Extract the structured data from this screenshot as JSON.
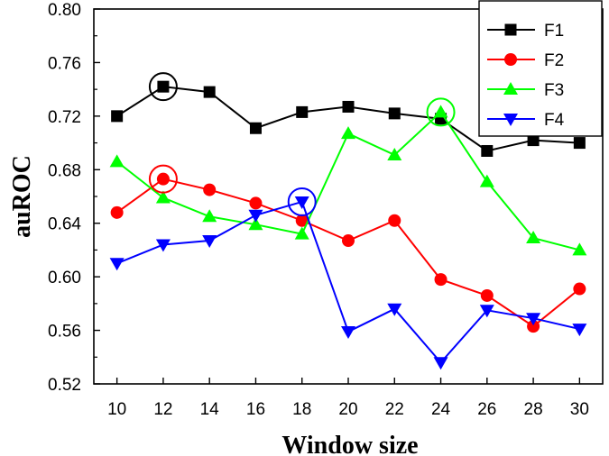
{
  "chart_data": {
    "type": "line",
    "title": "",
    "xlabel": "Window size",
    "ylabel": "auROC",
    "x": [
      10,
      12,
      14,
      16,
      18,
      20,
      22,
      24,
      26,
      28,
      30
    ],
    "xticks": [
      "10",
      "12",
      "14",
      "16",
      "18",
      "20",
      "22",
      "24",
      "26",
      "28",
      "30"
    ],
    "yticks": [
      "0.52",
      "0.56",
      "0.60",
      "0.64",
      "0.68",
      "0.72",
      "0.76",
      "0.80"
    ],
    "ylim": [
      0.52,
      0.8
    ],
    "legend_position": "top-right",
    "series": [
      {
        "name": "F1",
        "color": "#000000",
        "marker": "square",
        "values": [
          0.72,
          0.742,
          0.738,
          0.711,
          0.723,
          0.727,
          0.722,
          0.718,
          0.694,
          0.702,
          0.7
        ],
        "highlight_x": 12
      },
      {
        "name": "F2",
        "color": "#ff0000",
        "marker": "circle",
        "values": [
          0.648,
          0.673,
          0.665,
          0.655,
          0.642,
          0.627,
          0.642,
          0.598,
          0.586,
          0.563,
          0.591
        ],
        "highlight_x": 12
      },
      {
        "name": "F3",
        "color": "#00ff00",
        "marker": "triangle-up",
        "values": [
          0.686,
          0.659,
          0.645,
          0.639,
          0.632,
          0.707,
          0.691,
          0.723,
          0.671,
          0.629,
          0.62
        ],
        "highlight_x": 24
      },
      {
        "name": "F4",
        "color": "#0000ff",
        "marker": "triangle-down",
        "values": [
          0.61,
          0.624,
          0.627,
          0.646,
          0.656,
          0.559,
          0.576,
          0.536,
          0.575,
          0.569,
          0.561
        ],
        "highlight_x": 18
      }
    ]
  }
}
